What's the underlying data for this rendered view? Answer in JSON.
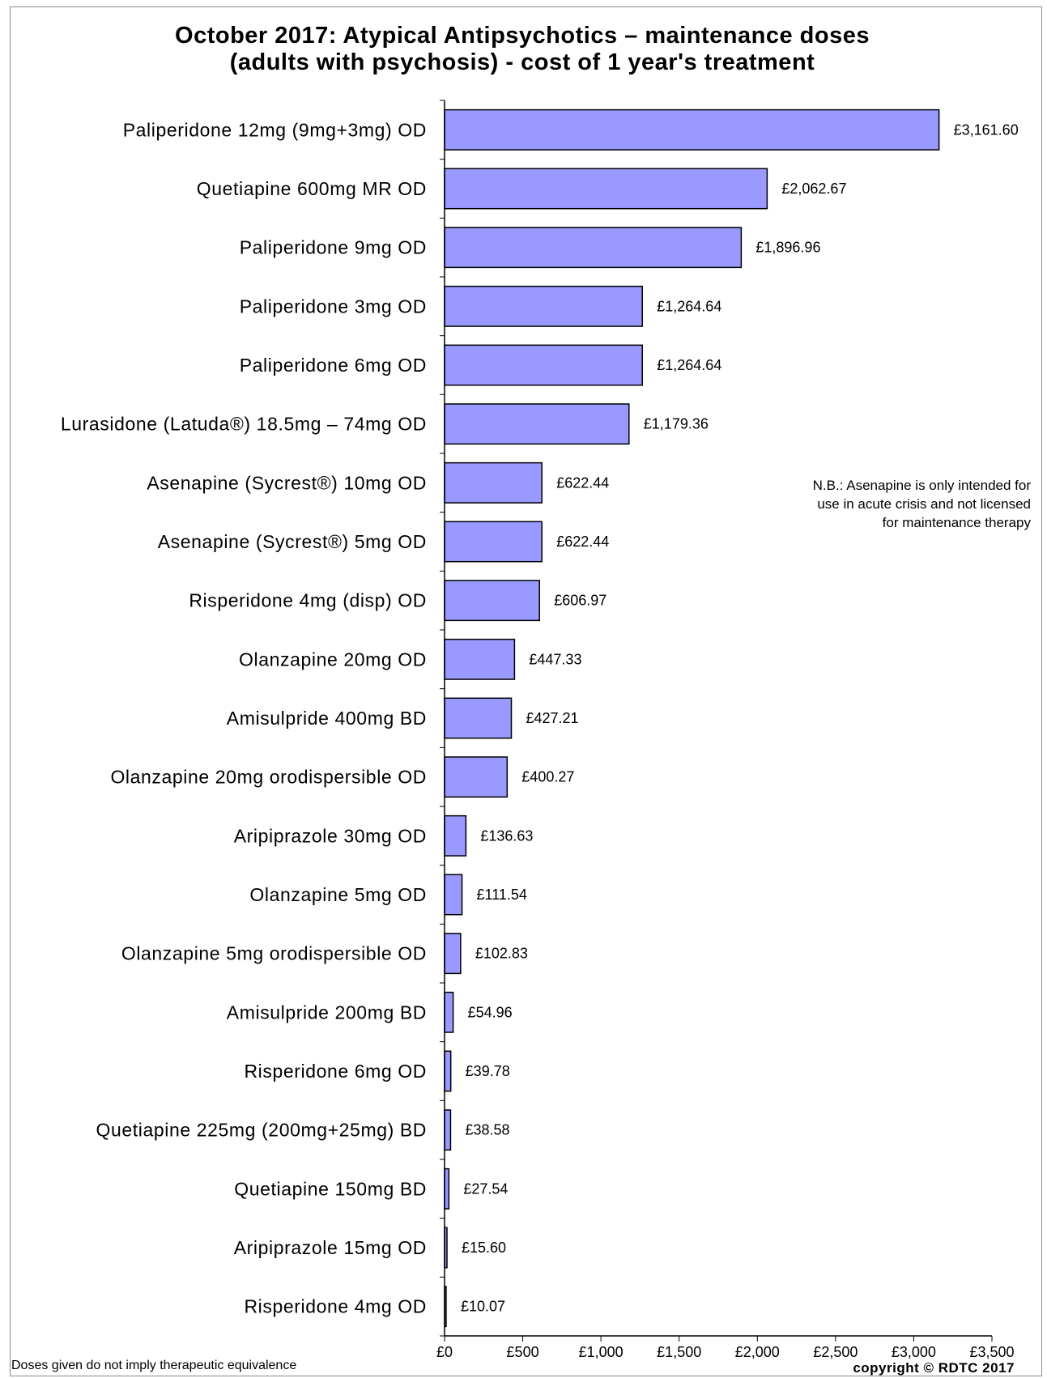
{
  "chart_data": {
    "type": "bar",
    "orientation": "horizontal",
    "title_lines": [
      "October 2017: Atypical Antipsychotics – maintenance doses",
      "(adults with psychosis) - cost of 1 year's treatment"
    ],
    "categories": [
      "Paliperidone 12mg (9mg+3mg) OD",
      "Quetiapine 600mg MR OD",
      "Paliperidone 9mg OD",
      "Paliperidone 3mg OD",
      "Paliperidone 6mg OD",
      "Lurasidone  (Latuda®) 18.5mg – 74mg OD",
      "Asenapine (Sycrest®) 10mg OD",
      "Asenapine (Sycrest®) 5mg OD",
      "Risperidone 4mg (disp) OD",
      "Olanzapine 20mg OD",
      "Amisulpride 400mg BD",
      "Olanzapine 20mg orodispersible OD",
      "Aripiprazole 30mg OD",
      "Olanzapine 5mg OD",
      "Olanzapine 5mg orodispersible OD",
      "Amisulpride 200mg BD",
      "Risperidone 6mg OD",
      "Quetiapine 225mg (200mg+25mg) BD",
      "Quetiapine 150mg BD",
      "Aripiprazole 15mg OD",
      "Risperidone 4mg OD"
    ],
    "values": [
      3161.6,
      2062.67,
      1896.96,
      1264.64,
      1264.64,
      1179.36,
      622.44,
      622.44,
      606.97,
      447.33,
      427.21,
      400.27,
      136.63,
      111.54,
      102.83,
      54.96,
      39.78,
      38.58,
      27.54,
      15.6,
      10.07
    ],
    "value_labels": [
      "£3,161.60",
      "£2,062.67",
      "£1,896.96",
      "£1,264.64",
      "£1,264.64",
      "£1,179.36",
      "£622.44",
      "£622.44",
      "£606.97",
      "£447.33",
      "£427.21",
      "£400.27",
      "£136.63",
      "£111.54",
      "£102.83",
      "£54.96",
      "£39.78",
      "£38.58",
      "£27.54",
      "£15.60",
      "£10.07"
    ],
    "xlim": [
      0,
      3500
    ],
    "x_ticks": [
      0,
      500,
      1000,
      1500,
      2000,
      2500,
      3000,
      3500
    ],
    "x_tick_labels": [
      "£0",
      "£500",
      "£1,000",
      "£1,500",
      "£2,000",
      "£2,500",
      "£3,000",
      "£3,500"
    ],
    "xlabel": "",
    "ylabel": "",
    "grid": false,
    "bar_color": "#9999ff",
    "bar_edge_color": "#000000"
  },
  "note_lines": [
    "N.B.: Asenapine is only intended for",
    "use in acute crisis and not licensed",
    "for maintenance therapy"
  ],
  "footer": {
    "left": "Doses given do not imply  therapeutic equivalence",
    "right": "copyright © RDTC 2017"
  }
}
